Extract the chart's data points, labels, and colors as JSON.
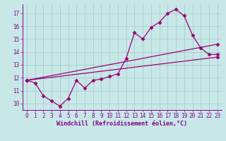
{
  "xlabel": "Windchill (Refroidissement éolien,°C)",
  "ylabel": "",
  "bg_color": "#c8e8e8",
  "line_color": "#990077",
  "grid_color": "#aacccc",
  "xlim": [
    -0.5,
    23.5
  ],
  "ylim": [
    9.5,
    17.7
  ],
  "xticks": [
    0,
    1,
    2,
    3,
    4,
    5,
    6,
    7,
    8,
    9,
    10,
    11,
    12,
    13,
    14,
    15,
    16,
    17,
    18,
    19,
    20,
    21,
    22,
    23
  ],
  "yticks": [
    10,
    11,
    12,
    13,
    14,
    15,
    16,
    17
  ],
  "line1_x": [
    0,
    1,
    2,
    3,
    4,
    5,
    6,
    7,
    8,
    9,
    10,
    11,
    12,
    13,
    14,
    15,
    16,
    17,
    18,
    19,
    20,
    21,
    22,
    23
  ],
  "line1_y": [
    11.8,
    11.6,
    10.6,
    10.2,
    9.8,
    10.4,
    11.8,
    11.2,
    11.8,
    11.9,
    12.1,
    12.3,
    13.5,
    15.5,
    15.0,
    15.9,
    16.3,
    17.0,
    17.3,
    16.8,
    15.3,
    14.3,
    13.8,
    13.8
  ],
  "line2_x": [
    0,
    23
  ],
  "line2_y": [
    11.8,
    13.6
  ],
  "line3_x": [
    0,
    23
  ],
  "line3_y": [
    11.8,
    14.6
  ],
  "font_color": "#880088",
  "tick_fontsize": 5.5,
  "label_fontsize": 6.0,
  "marker": "D",
  "markersize": 2.5,
  "linewidth": 0.9
}
